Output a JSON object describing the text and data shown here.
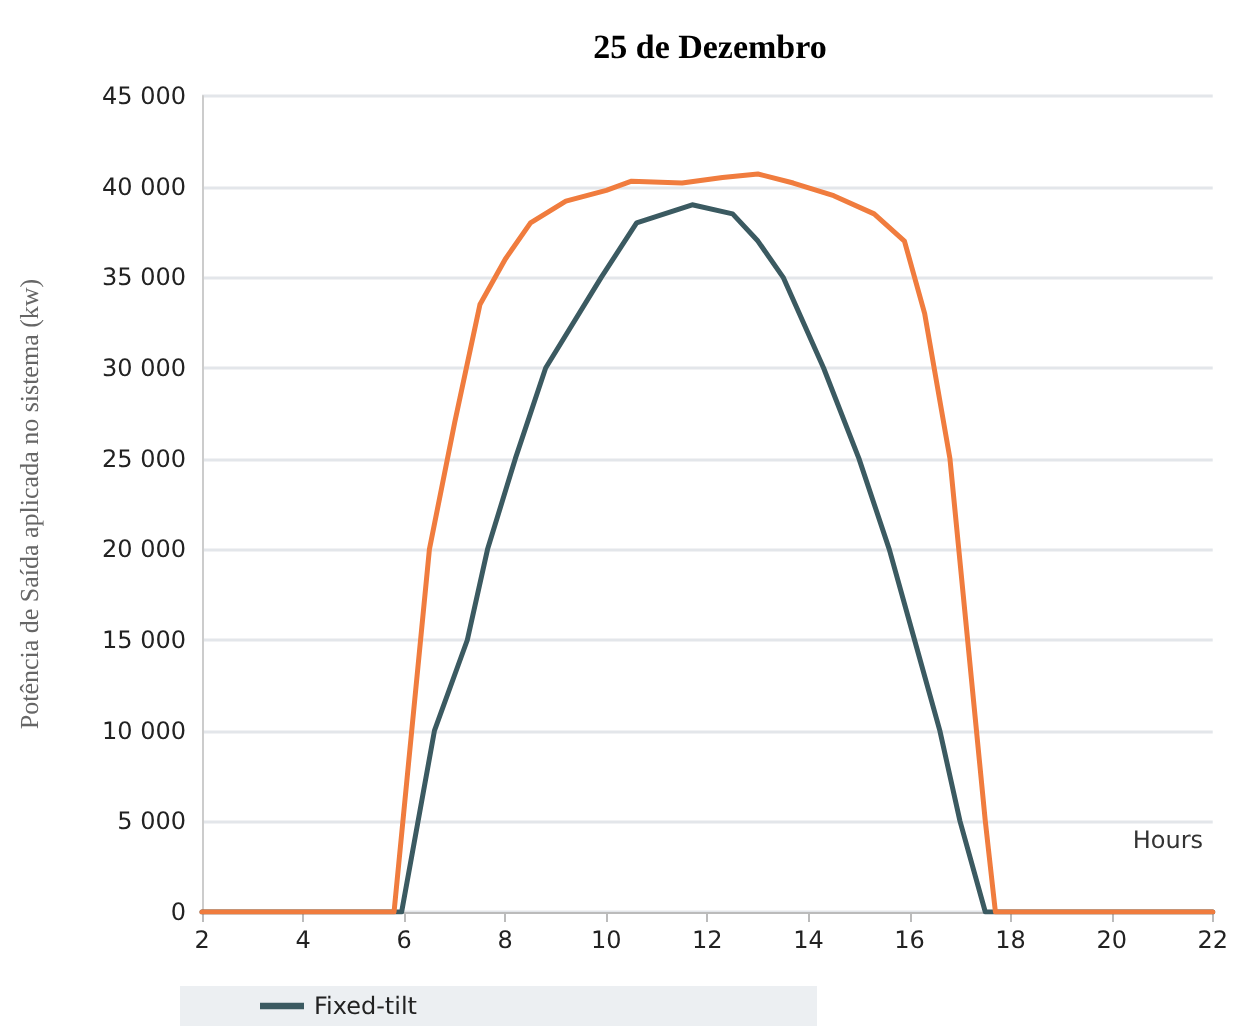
{
  "chart_data": {
    "type": "line",
    "title": "25 de Dezembro",
    "xlabel": "Hours",
    "ylabel": "Potência de Saída aplicada no sistema (kw)",
    "series": [
      {
        "name": "Fixed-tilt",
        "color": "#3b5a61",
        "x": [
          2,
          5.95,
          6.6,
          7.25,
          7.65,
          8.2,
          8.8,
          9.9,
          10.6,
          11.7,
          12.5,
          13,
          13.5,
          14.3,
          15,
          15.6,
          16.1,
          16.6,
          17,
          17.5,
          22
        ],
        "values": [
          0,
          0,
          10000,
          15000,
          20000,
          25000,
          30000,
          35000,
          38000,
          39000,
          38500,
          37000,
          35000,
          30000,
          25000,
          20000,
          15000,
          10000,
          5000,
          0,
          0
        ]
      },
      {
        "color": "#f07c3e",
        "x": [
          2,
          5.8,
          6.15,
          6.5,
          7,
          7.5,
          8,
          8.5,
          9.2,
          10,
          10.5,
          11.5,
          12.3,
          13,
          13.7,
          14.5,
          15.3,
          15.9,
          16.3,
          16.8,
          17.15,
          17.5,
          17.7,
          22
        ],
        "values": [
          0,
          0,
          10000,
          20000,
          27000,
          33500,
          36000,
          38000,
          39200,
          39800,
          40300,
          40200,
          40500,
          40700,
          40200,
          39500,
          38500,
          37000,
          33000,
          25000,
          15000,
          5000,
          0,
          0
        ]
      }
    ],
    "xlim": [
      2,
      22
    ],
    "xticks": [
      2,
      4,
      6,
      8,
      10,
      12,
      14,
      16,
      18,
      20,
      22
    ],
    "ylim": [
      0,
      45000
    ],
    "yticks": [
      0,
      {
        "value": 5000,
        "label": "5 000"
      },
      {
        "value": 10000,
        "label": "10 000"
      },
      {
        "value": 15000,
        "label": "15 000"
      },
      {
        "value": 20000,
        "label": "20 000"
      },
      {
        "value": 25000,
        "label": "25 000"
      },
      {
        "value": 30000,
        "label": "30 000"
      },
      {
        "value": 35000,
        "label": "35 000"
      },
      {
        "value": 40000,
        "label": "40 000"
      },
      {
        "value": 45000,
        "label": "45 000"
      }
    ],
    "grid": "y",
    "legend": "bottom",
    "marker": "none",
    "line_style": "solid"
  }
}
